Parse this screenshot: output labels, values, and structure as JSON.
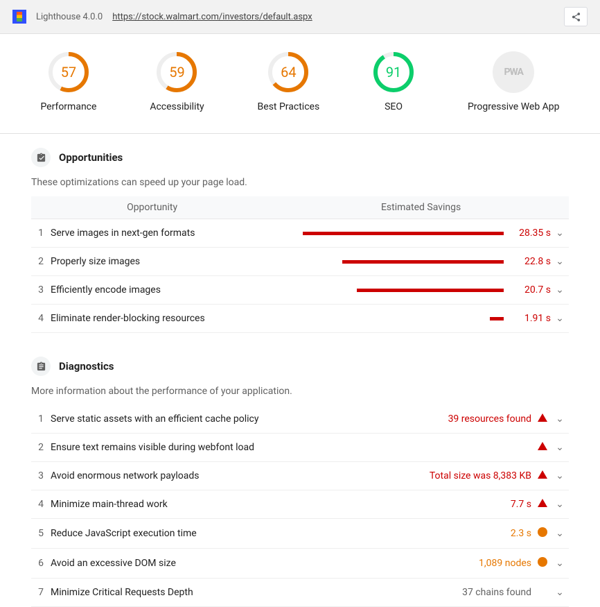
{
  "header": {
    "version": "Lighthouse 4.0.0",
    "url": "https://stock.walmart.com/investors/default.aspx"
  },
  "colors": {
    "orange": "#e67700",
    "green": "#0cce6b",
    "red": "#cc0000",
    "gray_text": "#616161",
    "track": "#eeeeee"
  },
  "gauges": [
    {
      "score": "57",
      "label": "Performance",
      "color": "#e67700",
      "pct": 57
    },
    {
      "score": "59",
      "label": "Accessibility",
      "color": "#e67700",
      "pct": 59
    },
    {
      "score": "64",
      "label": "Best Practices",
      "color": "#e67700",
      "pct": 64
    },
    {
      "score": "91",
      "label": "SEO",
      "color": "#0cce6b",
      "pct": 91
    },
    {
      "type": "pwa",
      "label": "Progressive Web App",
      "badge": "PWA"
    }
  ],
  "opportunities": {
    "title": "Opportunities",
    "desc": "These optimizations can speed up your page load.",
    "head_left": "Opportunity",
    "head_right": "Estimated Savings",
    "max_seconds": 28.35,
    "rows": [
      {
        "n": "1",
        "label": "Serve images in next-gen formats",
        "seconds": 28.35,
        "display": "28.35 s"
      },
      {
        "n": "2",
        "label": "Properly size images",
        "seconds": 22.8,
        "display": "22.8 s"
      },
      {
        "n": "3",
        "label": "Efficiently encode images",
        "seconds": 20.7,
        "display": "20.7 s"
      },
      {
        "n": "4",
        "label": "Eliminate render-blocking resources",
        "seconds": 1.91,
        "display": "1.91 s"
      }
    ]
  },
  "diagnostics": {
    "title": "Diagnostics",
    "desc": "More information about the performance of your application.",
    "rows": [
      {
        "n": "1",
        "label": "Serve static assets with an efficient cache policy",
        "value": "39 resources found",
        "value_color": "c-red",
        "icon": "tri-red"
      },
      {
        "n": "2",
        "label": "Ensure text remains visible during webfont load",
        "value": "",
        "value_color": "",
        "icon": "tri-red"
      },
      {
        "n": "3",
        "label": "Avoid enormous network payloads",
        "value": "Total size was 8,383 KB",
        "value_color": "c-red",
        "icon": "tri-red"
      },
      {
        "n": "4",
        "label": "Minimize main-thread work",
        "value": "7.7 s",
        "value_color": "c-red",
        "icon": "tri-red"
      },
      {
        "n": "5",
        "label": "Reduce JavaScript execution time",
        "value": "2.3 s",
        "value_color": "c-orange",
        "icon": "circ-orange"
      },
      {
        "n": "6",
        "label": "Avoid an excessive DOM size",
        "value": "1,089 nodes",
        "value_color": "c-orange",
        "icon": "circ-orange"
      },
      {
        "n": "7",
        "label": "Minimize Critical Requests Depth",
        "value": "37 chains found",
        "value_color": "c-gray",
        "icon": ""
      }
    ]
  }
}
